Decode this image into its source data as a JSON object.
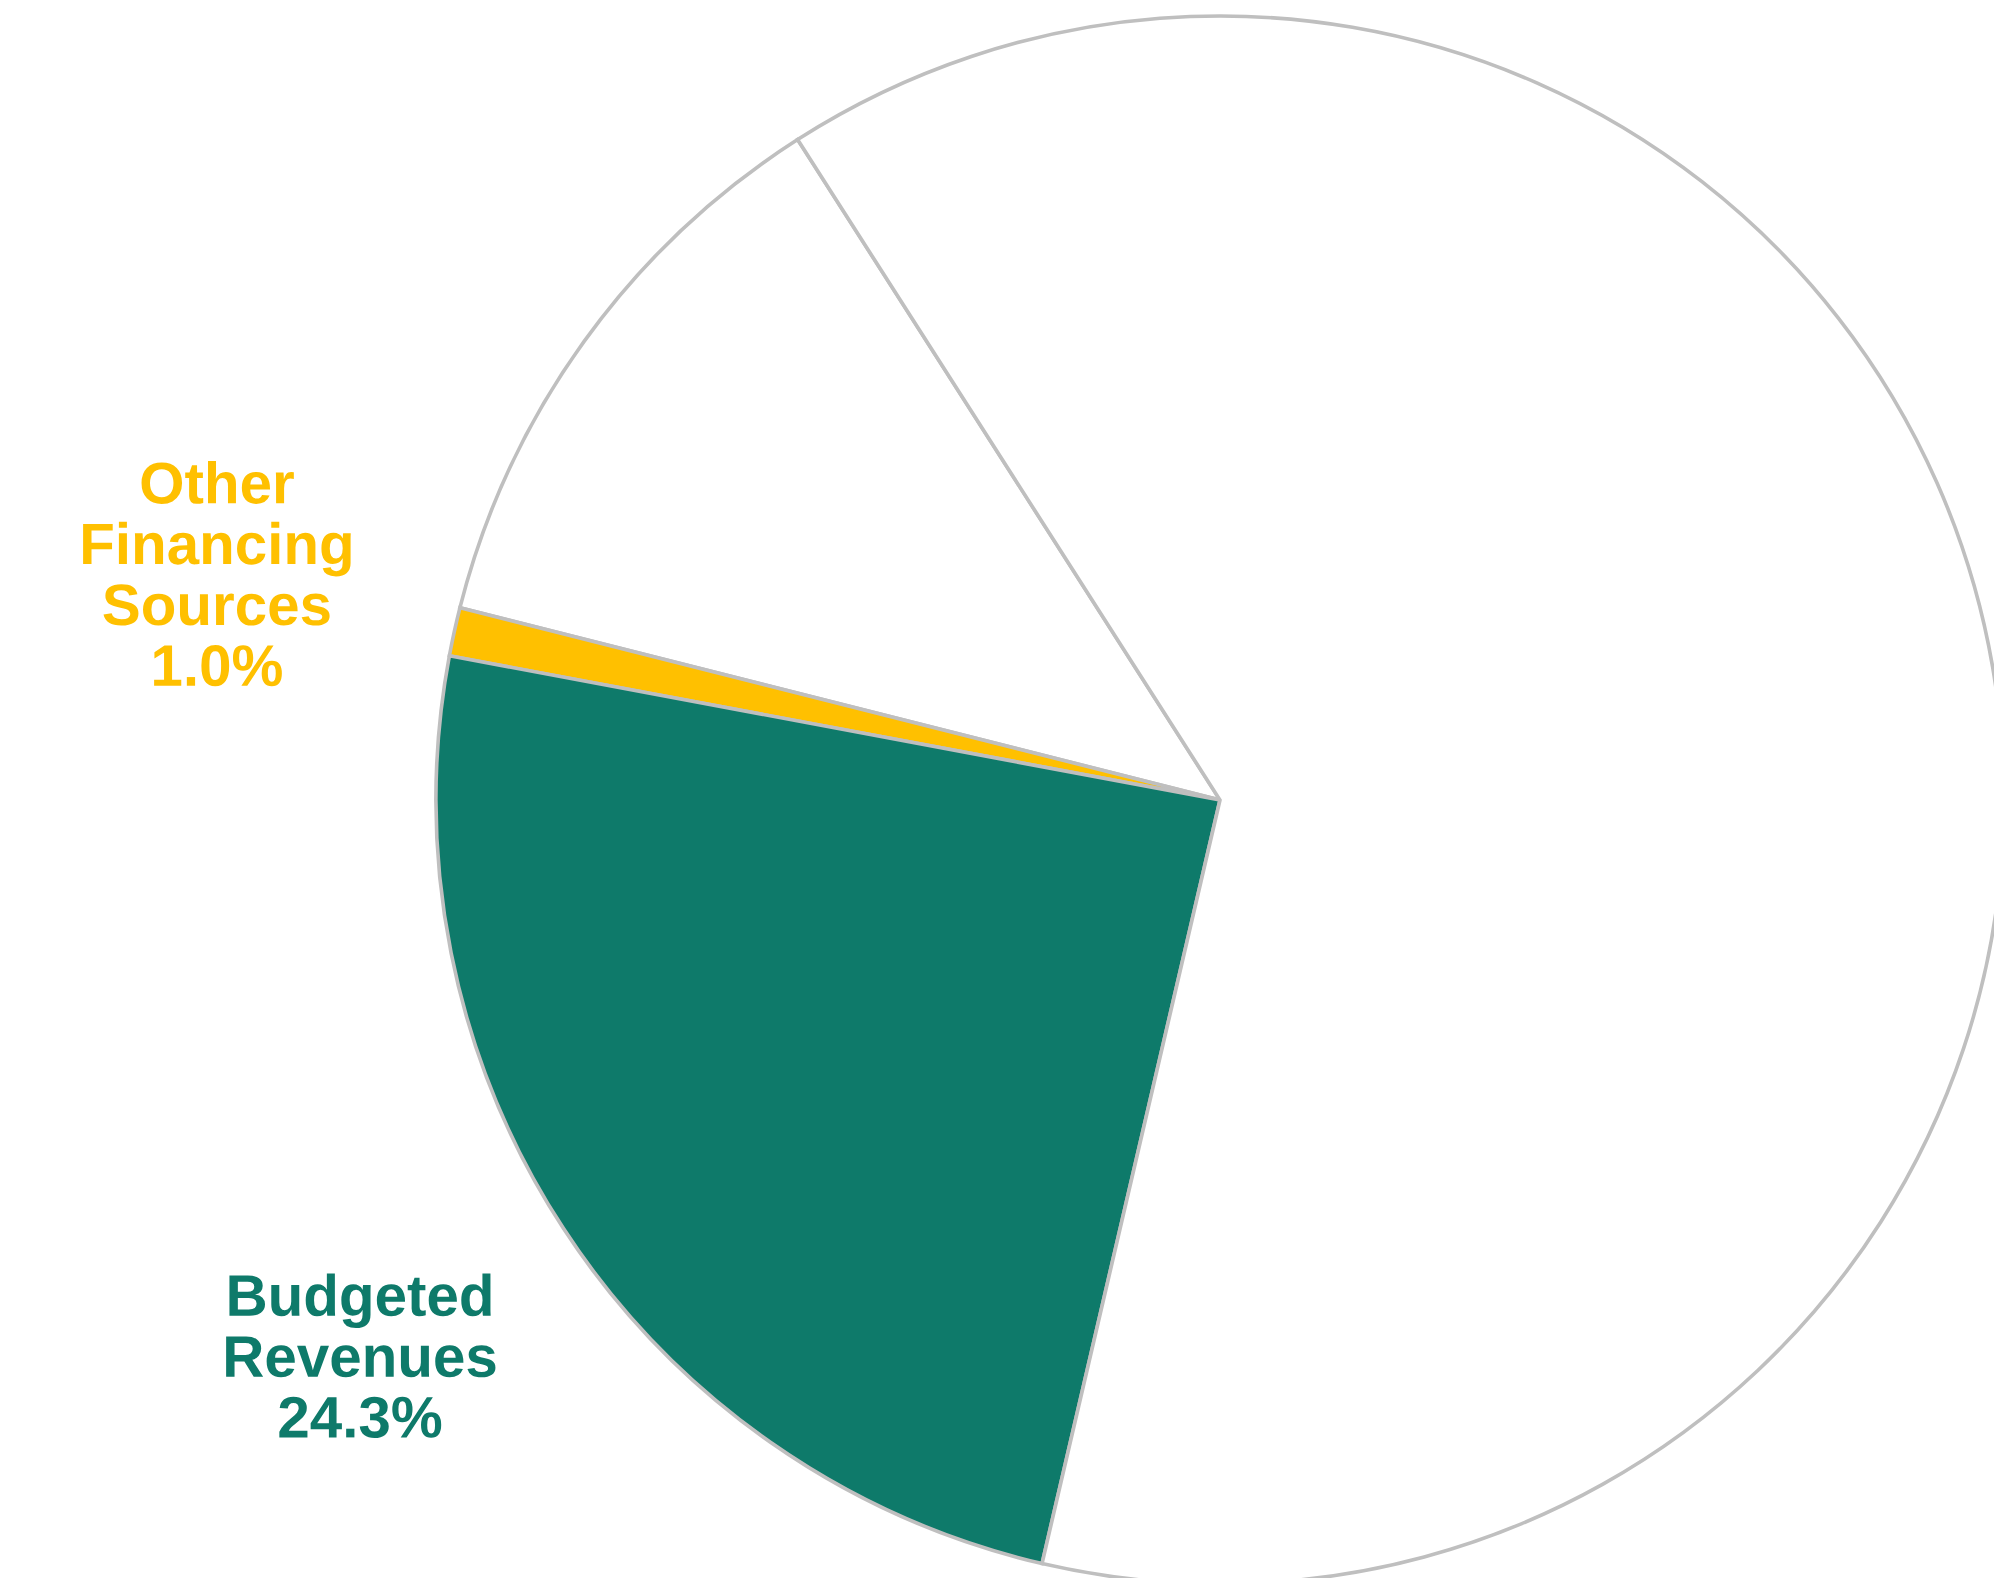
{
  "chart_data": {
    "type": "pie",
    "categories": [
      null,
      "Other Financing Sources",
      "Budgeted Revenues",
      null
    ],
    "values": [
      12.0,
      1.0,
      24.3,
      62.7
    ],
    "value_labels": [
      null,
      "1.0%",
      "24.3%",
      null
    ],
    "colors": [
      "#ffffff",
      "#ffc000",
      "#0e7a6a",
      "#ffffff"
    ],
    "legend": false
  }
}
